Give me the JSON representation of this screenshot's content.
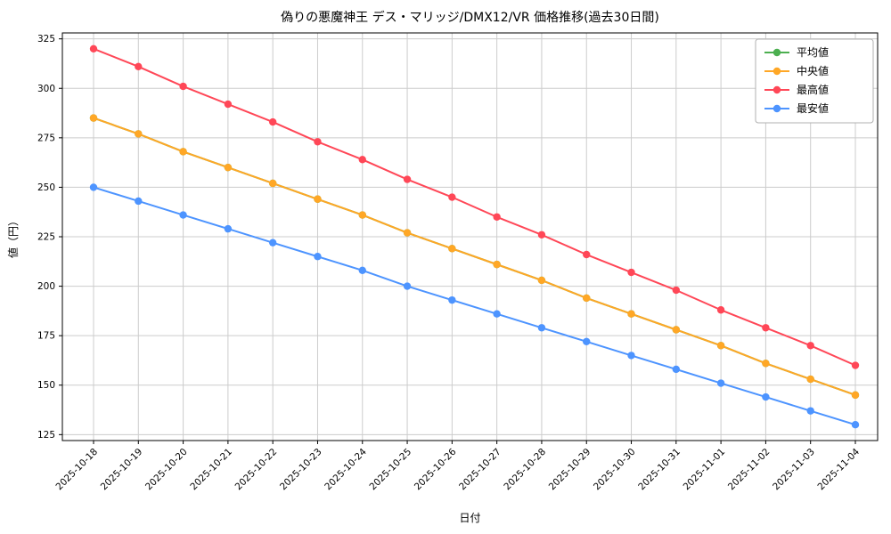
{
  "chart_data": {
    "type": "line",
    "title": "偽りの悪魔神王 デス・マリッジ/DMX12/VR 価格推移(過去30日間)",
    "xlabel": "日付",
    "ylabel": "値（円）",
    "x": [
      "2025-10-18",
      "2025-10-19",
      "2025-10-20",
      "2025-10-21",
      "2025-10-22",
      "2025-10-23",
      "2025-10-24",
      "2025-10-25",
      "2025-10-26",
      "2025-10-27",
      "2025-10-28",
      "2025-10-29",
      "2025-10-30",
      "2025-10-31",
      "2025-11-01",
      "2025-11-02",
      "2025-11-03",
      "2025-11-04"
    ],
    "series": [
      {
        "key": "average",
        "name": "平均値",
        "color": "#4caf50",
        "values": [
          285,
          277,
          268,
          260,
          252,
          244,
          236,
          227,
          219,
          211,
          203,
          194,
          186,
          178,
          170,
          161,
          153,
          145
        ]
      },
      {
        "key": "median",
        "name": "中央値",
        "color": "#ffa726",
        "values": [
          285,
          277,
          268,
          260,
          252,
          244,
          236,
          227,
          219,
          211,
          203,
          194,
          186,
          178,
          170,
          161,
          153,
          145
        ]
      },
      {
        "key": "max",
        "name": "最高値",
        "color": "#ff4757",
        "values": [
          320,
          311,
          301,
          292,
          283,
          273,
          264,
          254,
          245,
          235,
          226,
          216,
          207,
          198,
          188,
          179,
          170,
          160
        ]
      },
      {
        "key": "min",
        "name": "最安値",
        "color": "#4d94ff",
        "values": [
          250,
          243,
          236,
          229,
          222,
          215,
          208,
          200,
          193,
          186,
          179,
          172,
          165,
          158,
          151,
          144,
          137,
          130
        ]
      }
    ],
    "ylim": [
      122,
      328
    ],
    "yticks": [
      125,
      150,
      175,
      200,
      225,
      250,
      275,
      300,
      325
    ],
    "grid": true,
    "grid_color": "#cccccc",
    "axis_color": "#000000",
    "legend_position": "upper right",
    "x_tick_rotation": 45
  }
}
